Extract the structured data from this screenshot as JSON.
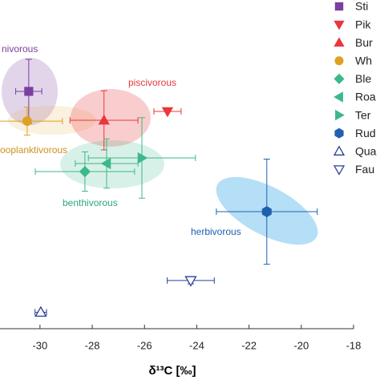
{
  "chart_data": {
    "type": "scatter",
    "xlabel": "δ¹³C [‰]",
    "xlim": [
      -31.53,
      -18
    ],
    "xticks": [
      -30,
      -28,
      -26,
      -24,
      -22,
      -20,
      -18
    ],
    "ylim": [
      0,
      20
    ],
    "annotations": [
      "nivorous",
      "ooplanktivorous",
      "piscivorous",
      "benthivorous",
      "herbivorous"
    ],
    "series": [
      {
        "name": "Sti",
        "color": "#7b3f9e",
        "marker": "square",
        "x": [
          -30.43
        ],
        "values": [
          14.44
        ],
        "xerr": [
          0.5
        ],
        "yerr": [
          1.95
        ]
      },
      {
        "name": "Pik",
        "color": "#e8383d",
        "marker": "triangle-down",
        "x": [
          -25.12
        ],
        "values": [
          13.22
        ],
        "xerr": [
          0.52
        ]
      },
      {
        "name": "Bur",
        "color": "#e8383d",
        "marker": "triangle-up",
        "x": [
          -27.55
        ],
        "values": [
          12.68
        ],
        "xerr": [
          1.3
        ],
        "yerr": [
          1.8
        ]
      },
      {
        "name": "Wh",
        "color": "#e0a020",
        "marker": "circle",
        "x": [
          -30.49
        ],
        "values": [
          12.63
        ],
        "xerr": [
          1.35
        ],
        "yerr": [
          0.85
        ]
      },
      {
        "name": "Ble",
        "color": "#3cb88a",
        "marker": "diamond",
        "x": [
          -28.28
        ],
        "values": [
          9.56
        ],
        "xerr": [
          1.9
        ],
        "yerr": [
          1.2
        ]
      },
      {
        "name": "Roa",
        "color": "#3cb88a",
        "marker": "triangle-left",
        "x": [
          -27.45
        ],
        "values": [
          10.05
        ],
        "xerr": [
          1.2
        ],
        "yerr": [
          1.5
        ]
      },
      {
        "name": "Ter",
        "color": "#3cb88a",
        "marker": "triangle-right",
        "x": [
          -26.1
        ],
        "values": [
          10.39
        ],
        "xerr": [
          2.05
        ],
        "yerr": [
          2.45
        ]
      },
      {
        "name": "Rud",
        "color": "#2060b0",
        "marker": "hexagon",
        "x": [
          -21.32
        ],
        "values": [
          7.12
        ],
        "xerr": [
          1.93
        ],
        "yerr": [
          3.2
        ]
      },
      {
        "name": "Qua",
        "color": "#2a3f9a",
        "marker": "triangle-up-open",
        "x": [
          -29.97
        ],
        "values": [
          1.0
        ],
        "xerr": [
          0.22
        ]
      },
      {
        "name": "Fau",
        "color": "#2a3f9a",
        "marker": "triangle-down-open",
        "x": [
          -24.23
        ],
        "values": [
          2.93
        ],
        "xerr": [
          0.9
        ],
        "yerr": [
          0.2
        ]
      }
    ]
  }
}
